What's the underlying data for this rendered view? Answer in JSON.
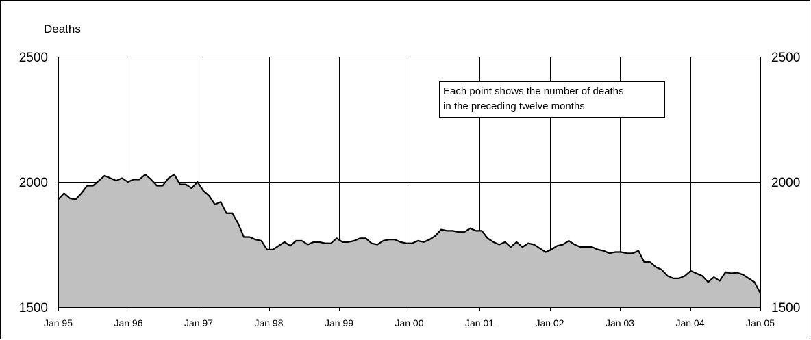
{
  "chart_data": {
    "type": "area",
    "title": "",
    "ylabel": "Deaths",
    "ylim": [
      1500,
      2500
    ],
    "yticks": [
      1500,
      2000,
      2500
    ],
    "xticks": [
      "Jan 95",
      "Jan 96",
      "Jan 97",
      "Jan 98",
      "Jan 99",
      "Jan 00",
      "Jan 01",
      "Jan 02",
      "Jan 03",
      "Jan 04",
      "Jan 05"
    ],
    "x_start": "Jan 95",
    "x_end": "Jan 05",
    "grid": "vertical lines at each January; horizontal lines at each y tick",
    "right_axis": true,
    "fill_color": "#c0c0c0",
    "line_color": "#000000",
    "annotation": [
      "Each point shows the number of deaths",
      "in the preceding twelve months"
    ],
    "series": [
      {
        "values": [
          1930,
          1955,
          1935,
          1930,
          1955,
          1985,
          1985,
          2005,
          2025,
          2015,
          2005,
          2015,
          2000,
          2010,
          2010,
          2030,
          2010,
          1985,
          1985,
          2015,
          2030,
          1990,
          1990,
          1975,
          2000,
          1965,
          1945,
          1910,
          1920,
          1875,
          1875,
          1835,
          1780,
          1780,
          1770,
          1765,
          1730,
          1730,
          1745,
          1760,
          1745,
          1765,
          1765,
          1750,
          1760,
          1760,
          1755,
          1755,
          1775,
          1760,
          1760,
          1765,
          1775,
          1775,
          1755,
          1750,
          1765,
          1770,
          1770,
          1760,
          1755,
          1755,
          1765,
          1760,
          1770,
          1785,
          1810,
          1805,
          1805,
          1800,
          1800,
          1815,
          1805,
          1805,
          1775,
          1760,
          1750,
          1760,
          1740,
          1760,
          1740,
          1755,
          1750,
          1735,
          1720,
          1730,
          1745,
          1750,
          1765,
          1750,
          1740,
          1740,
          1740,
          1730,
          1725,
          1715,
          1720,
          1720,
          1715,
          1715,
          1725,
          1680,
          1680,
          1660,
          1650,
          1625,
          1615,
          1615,
          1625,
          1645,
          1635,
          1625,
          1600,
          1620,
          1605,
          1640,
          1635,
          1638,
          1630,
          1615,
          1600,
          1555
        ]
      }
    ]
  }
}
